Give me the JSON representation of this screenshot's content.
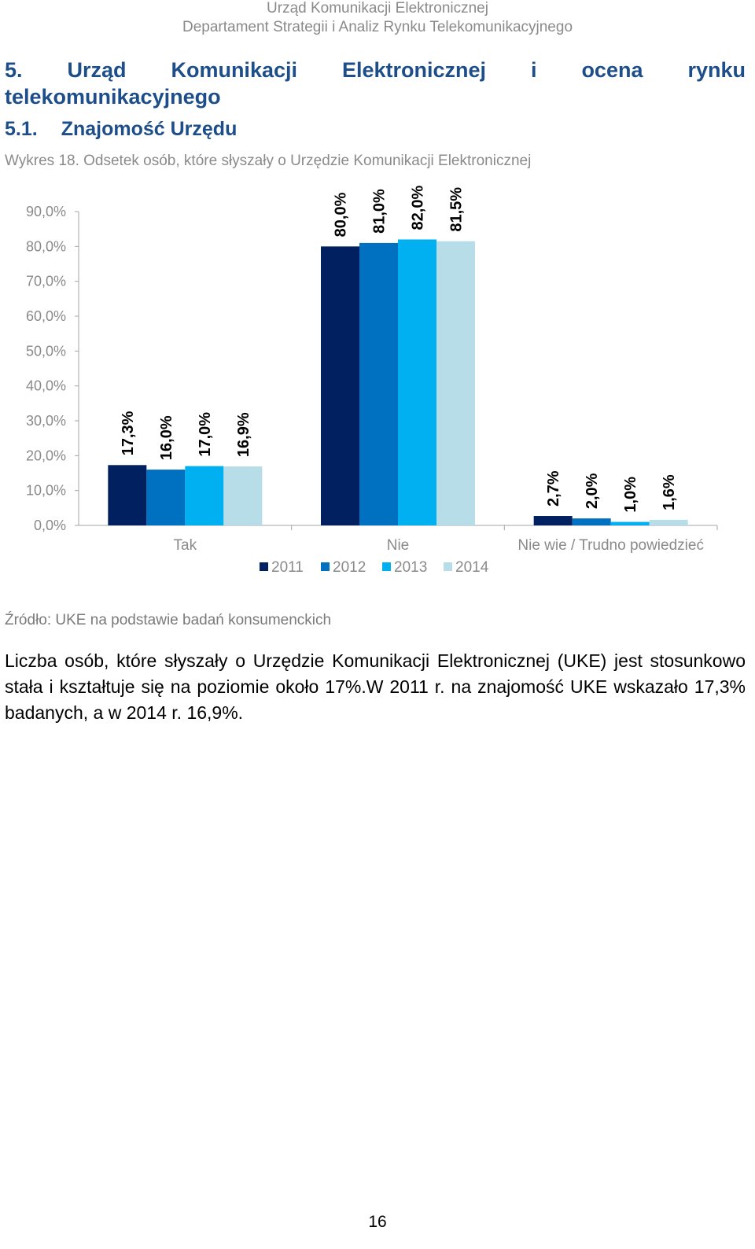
{
  "header": {
    "line1": "Urząd Komunikacji Elektronicznej",
    "line2": "Departament Strategii i Analiz Rynku Telekomunikacyjnego"
  },
  "section": {
    "number": "5.",
    "title_words": [
      "Urząd",
      "Komunikacji",
      "Elektronicznej",
      "i",
      "ocena",
      "rynku"
    ],
    "title_line2": "telekomunikacyjnego"
  },
  "subsection": {
    "number": "5.1.",
    "title": "Znajomość Urzędu"
  },
  "caption": "Wykres 18. Odsetek osób, które słyszały o Urzędzie Komunikacji Elektronicznej",
  "chart_data": {
    "type": "bar",
    "categories": [
      "Tak",
      "Nie",
      "Nie wie / Trudno powiedzieć"
    ],
    "series": [
      {
        "name": "2011",
        "color": "#002060",
        "values": [
          17.3,
          80.0,
          2.7
        ],
        "labels": [
          "17,3%",
          "80,0%",
          "2,7%"
        ]
      },
      {
        "name": "2012",
        "color": "#0070c0",
        "values": [
          16.0,
          81.0,
          2.0
        ],
        "labels": [
          "16,0%",
          "81,0%",
          "2,0%"
        ]
      },
      {
        "name": "2013",
        "color": "#00b0f0",
        "values": [
          17.0,
          82.0,
          1.0
        ],
        "labels": [
          "17,0%",
          "82,0%",
          "1,0%"
        ]
      },
      {
        "name": "2014",
        "color": "#b7dde8",
        "values": [
          16.9,
          81.5,
          1.6
        ],
        "labels": [
          "16,9%",
          "81,5%",
          "1,6%"
        ]
      }
    ],
    "ylim": [
      0,
      90
    ],
    "yticks": [
      0,
      10,
      20,
      30,
      40,
      50,
      60,
      70,
      80,
      90
    ],
    "ytick_labels": [
      "0,0%",
      "10,0%",
      "20,0%",
      "30,0%",
      "40,0%",
      "50,0%",
      "60,0%",
      "70,0%",
      "80,0%",
      "90,0%"
    ],
    "legend_position": "bottom",
    "grid": false
  },
  "source": "Źródło: UKE na podstawie badań konsumenckich",
  "paragraph": "Liczba osób, które słyszały o Urzędzie Komunikacji Elektronicznej (UKE) jest stosunkowo stała i kształtuje się na poziomie około 17%.W 2011 r. na znajomość UKE wskazało 17,3% badanych, a w 2014 r. 16,9%.",
  "page_number": "16"
}
